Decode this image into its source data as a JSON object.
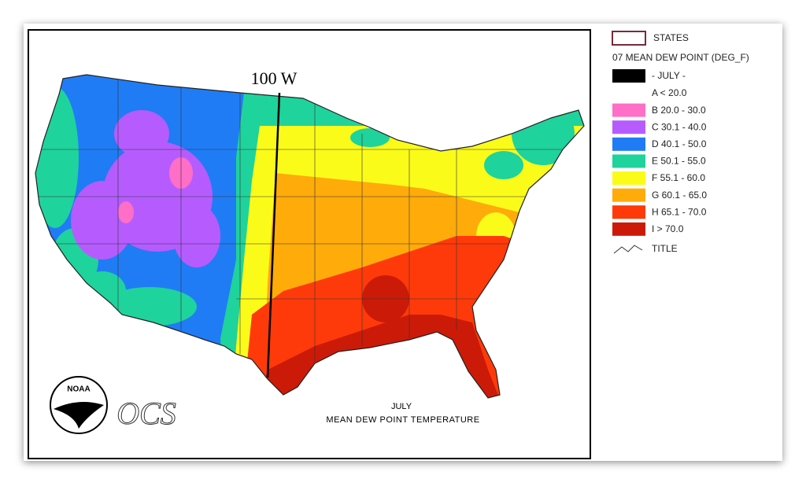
{
  "map": {
    "meridian_label": "100 W",
    "caption": [
      "JULY",
      "MEAN DEW POINT TEMPERATURE"
    ],
    "logo": "NOAA",
    "org": "OCS"
  },
  "legend": {
    "states": "STATES",
    "title": "07 MEAN DEW POINT (DEG_F)",
    "month": "- JULY -",
    "items": [
      {
        "label": "A < 20.0",
        "color": "#ffffff"
      },
      {
        "label": "B 20.0 - 30.0",
        "color": "#ff6ec7"
      },
      {
        "label": "C 30.1 - 40.0",
        "color": "#b65cff"
      },
      {
        "label": "D 40.1 - 50.0",
        "color": "#1f7cf5"
      },
      {
        "label": "E 50.1 - 55.0",
        "color": "#1fd39c"
      },
      {
        "label": "F 55.1 - 60.0",
        "color": "#fbfb1a"
      },
      {
        "label": "G 60.1 - 65.0",
        "color": "#ffab0a"
      },
      {
        "label": "H 65.1 - 70.0",
        "color": "#ff3a0a"
      },
      {
        "label": "I > 70.0",
        "color": "#cc1a08"
      }
    ],
    "line": "TITLE"
  }
}
